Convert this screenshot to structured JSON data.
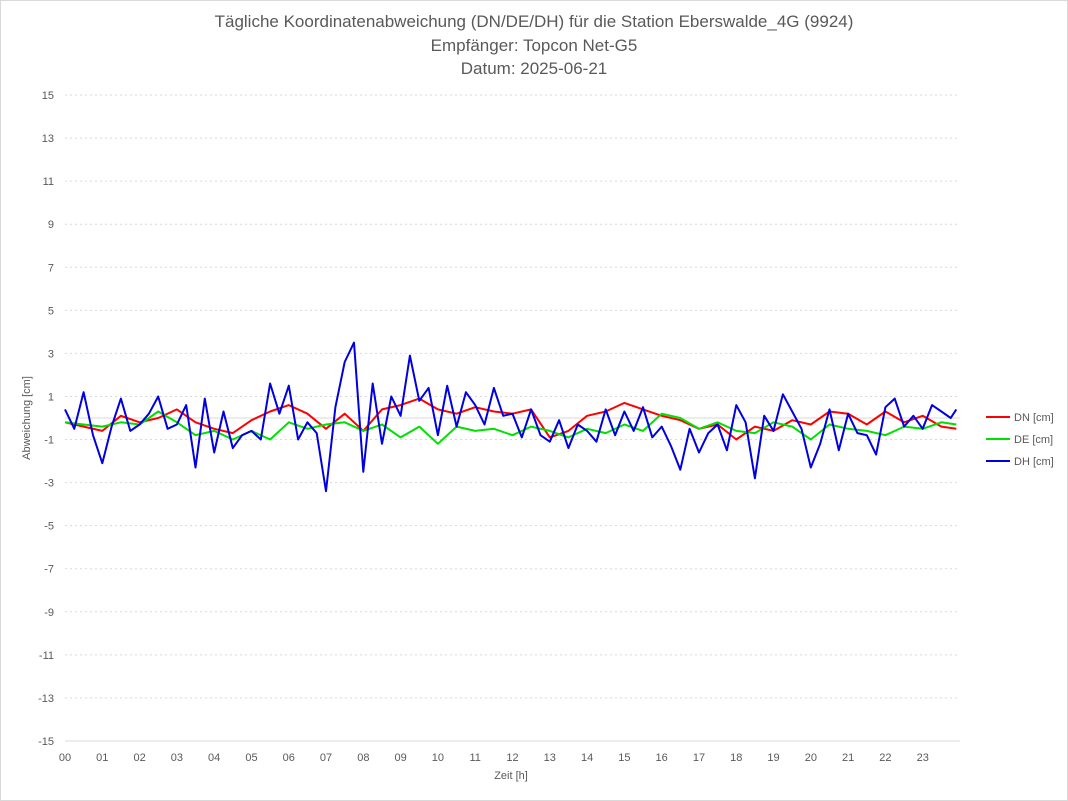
{
  "chart_data": {
    "type": "line",
    "title_lines": [
      "Tägliche Koordinatenabweichung (DN/DE/DH) für die Station Eberswalde_4G (9924)",
      "Empfänger: Topcon Net-G5",
      "Datum: 2025-06-21"
    ],
    "xlabel": "Zeit [h]",
    "ylabel": "Abweichung [cm]",
    "ylim": [
      -15,
      15
    ],
    "yticks": [
      15,
      13,
      11,
      9,
      7,
      5,
      3,
      1,
      -1,
      -3,
      -5,
      -7,
      -9,
      -11,
      -13,
      -15
    ],
    "xlim": [
      0,
      24
    ],
    "xticks": [
      "00",
      "01",
      "02",
      "03",
      "04",
      "05",
      "06",
      "07",
      "08",
      "09",
      "10",
      "11",
      "12",
      "13",
      "14",
      "15",
      "16",
      "17",
      "18",
      "19",
      "20",
      "21",
      "22",
      "23"
    ],
    "grid": "horizontal dotted",
    "legend_position": "right",
    "series": [
      {
        "name": "DN [cm]",
        "color": "#ff0000",
        "x": [
          0.0,
          0.5,
          1.0,
          1.5,
          2.0,
          2.5,
          3.0,
          3.5,
          4.0,
          4.5,
          5.0,
          5.5,
          6.0,
          6.5,
          7.0,
          7.5,
          8.0,
          8.5,
          9.0,
          9.5,
          10.0,
          10.5,
          11.0,
          11.5,
          12.0,
          12.5,
          13.0,
          13.5,
          14.0,
          14.5,
          15.0,
          15.5,
          16.0,
          16.5,
          17.0,
          17.5,
          18.0,
          18.5,
          19.0,
          19.5,
          20.0,
          20.5,
          21.0,
          21.5,
          22.0,
          22.5,
          23.0,
          23.5,
          23.9
        ],
        "values": [
          -0.2,
          -0.4,
          -0.6,
          0.1,
          -0.2,
          0.0,
          0.4,
          -0.2,
          -0.5,
          -0.7,
          -0.1,
          0.3,
          0.6,
          0.2,
          -0.5,
          0.2,
          -0.6,
          0.4,
          0.6,
          0.9,
          0.4,
          0.2,
          0.5,
          0.3,
          0.2,
          0.4,
          -0.9,
          -0.6,
          0.1,
          0.3,
          0.7,
          0.4,
          0.1,
          -0.1,
          -0.5,
          -0.3,
          -1.0,
          -0.4,
          -0.6,
          -0.1,
          -0.3,
          0.3,
          0.2,
          -0.3,
          0.3,
          -0.2,
          0.1,
          -0.4,
          -0.5
        ]
      },
      {
        "name": "DE [cm]",
        "color": "#00e000",
        "x": [
          0.0,
          0.5,
          1.0,
          1.5,
          2.0,
          2.5,
          3.0,
          3.5,
          4.0,
          4.5,
          5.0,
          5.5,
          6.0,
          6.5,
          7.0,
          7.5,
          8.0,
          8.5,
          9.0,
          9.5,
          10.0,
          10.5,
          11.0,
          11.5,
          12.0,
          12.5,
          13.0,
          13.5,
          14.0,
          14.5,
          15.0,
          15.5,
          16.0,
          16.5,
          17.0,
          17.5,
          18.0,
          18.5,
          19.0,
          19.5,
          20.0,
          20.5,
          21.0,
          21.5,
          22.0,
          22.5,
          23.0,
          23.5,
          23.9
        ],
        "values": [
          -0.2,
          -0.3,
          -0.4,
          -0.2,
          -0.3,
          0.3,
          -0.2,
          -0.8,
          -0.6,
          -1.0,
          -0.6,
          -1.0,
          -0.2,
          -0.5,
          -0.3,
          -0.2,
          -0.6,
          -0.3,
          -0.9,
          -0.4,
          -1.2,
          -0.4,
          -0.6,
          -0.5,
          -0.8,
          -0.4,
          -0.6,
          -0.9,
          -0.5,
          -0.7,
          -0.3,
          -0.6,
          0.2,
          0.0,
          -0.5,
          -0.2,
          -0.6,
          -0.7,
          -0.2,
          -0.4,
          -1.0,
          -0.3,
          -0.5,
          -0.6,
          -0.8,
          -0.4,
          -0.5,
          -0.2,
          -0.3
        ]
      },
      {
        "name": "DH [cm]",
        "color": "#0000e0",
        "x": [
          0.0,
          0.25,
          0.5,
          0.75,
          1.0,
          1.25,
          1.5,
          1.75,
          2.0,
          2.25,
          2.5,
          2.75,
          3.0,
          3.25,
          3.5,
          3.75,
          4.0,
          4.25,
          4.5,
          4.75,
          5.0,
          5.25,
          5.5,
          5.75,
          6.0,
          6.25,
          6.5,
          6.75,
          7.0,
          7.25,
          7.5,
          7.75,
          8.0,
          8.25,
          8.5,
          8.75,
          9.0,
          9.25,
          9.5,
          9.75,
          10.0,
          10.25,
          10.5,
          10.75,
          11.0,
          11.25,
          11.5,
          11.75,
          12.0,
          12.25,
          12.5,
          12.75,
          13.0,
          13.25,
          13.5,
          13.75,
          14.0,
          14.25,
          14.5,
          14.75,
          15.0,
          15.25,
          15.5,
          15.75,
          16.0,
          16.25,
          16.5,
          16.75,
          17.0,
          17.25,
          17.5,
          17.75,
          18.0,
          18.25,
          18.5,
          18.75,
          19.0,
          19.25,
          19.5,
          19.75,
          20.0,
          20.25,
          20.5,
          20.75,
          21.0,
          21.25,
          21.5,
          21.75,
          22.0,
          22.25,
          22.5,
          22.75,
          23.0,
          23.25,
          23.5,
          23.75,
          23.9
        ],
        "values": [
          0.4,
          -0.5,
          1.2,
          -0.8,
          -2.1,
          -0.4,
          0.9,
          -0.6,
          -0.3,
          0.2,
          1.0,
          -0.5,
          -0.3,
          0.6,
          -2.3,
          0.9,
          -1.6,
          0.3,
          -1.4,
          -0.8,
          -0.6,
          -1.0,
          1.6,
          0.2,
          1.5,
          -1.0,
          -0.2,
          -0.7,
          -3.4,
          0.5,
          2.6,
          3.5,
          -2.5,
          1.6,
          -1.2,
          1.0,
          0.1,
          2.9,
          0.8,
          1.4,
          -0.8,
          1.5,
          -0.4,
          1.2,
          0.6,
          -0.3,
          1.4,
          0.1,
          0.2,
          -0.9,
          0.4,
          -0.8,
          -1.1,
          -0.1,
          -1.4,
          -0.3,
          -0.6,
          -1.1,
          0.4,
          -0.8,
          0.3,
          -0.6,
          0.5,
          -0.9,
          -0.4,
          -1.3,
          -2.4,
          -0.5,
          -1.6,
          -0.7,
          -0.3,
          -1.5,
          0.6,
          -0.2,
          -2.8,
          0.1,
          -0.6,
          1.1,
          0.3,
          -0.5,
          -2.3,
          -1.2,
          0.4,
          -1.5,
          0.2,
          -0.7,
          -0.8,
          -1.7,
          0.5,
          0.9,
          -0.4,
          0.1,
          -0.5,
          0.6,
          0.3,
          0.0,
          0.4
        ]
      }
    ]
  }
}
